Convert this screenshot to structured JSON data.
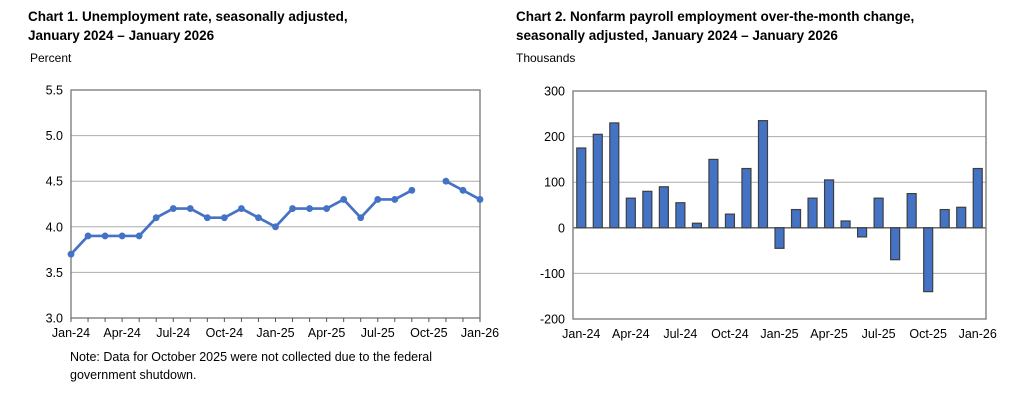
{
  "page": {
    "background": "#ffffff"
  },
  "charts": [
    {
      "title_line1": "Chart 1. Unemployment rate, seasonally adjusted,",
      "title_line2": "January 2024 – January 2026",
      "unit_label": "Percent",
      "note_line1": "Note: Data for October 2025 were not collected due to the federal",
      "note_line2": "government shutdown."
    },
    {
      "title_line1": "Chart 2. Nonfarm payroll employment over-the-month change,",
      "title_line2": "seasonally adjusted, January 2024 – January 2026",
      "unit_label": "Thousands"
    }
  ],
  "chart_data": [
    {
      "type": "line",
      "title": "Chart 1. Unemployment rate, seasonally adjusted, January 2024 – January 2026",
      "ylabel": "Percent",
      "x": [
        "Jan-24",
        "Feb-24",
        "Mar-24",
        "Apr-24",
        "May-24",
        "Jun-24",
        "Jul-24",
        "Aug-24",
        "Sep-24",
        "Oct-24",
        "Nov-24",
        "Dec-24",
        "Jan-25",
        "Feb-25",
        "Mar-25",
        "Apr-25",
        "May-25",
        "Jun-25",
        "Jul-25",
        "Aug-25",
        "Sep-25",
        "Oct-25",
        "Nov-25",
        "Dec-25",
        "Jan-26"
      ],
      "values": [
        3.7,
        3.9,
        3.9,
        3.9,
        3.9,
        4.1,
        4.2,
        4.2,
        4.1,
        4.1,
        4.2,
        4.1,
        4.0,
        4.2,
        4.2,
        4.2,
        4.3,
        4.1,
        4.3,
        4.3,
        4.4,
        null,
        4.5,
        4.4,
        4.3
      ],
      "missing_x": [
        "Oct-25"
      ],
      "ylim": [
        3.0,
        5.5
      ],
      "ytick_values": [
        5.5,
        5.0,
        4.5,
        4.0,
        3.5,
        3.0
      ],
      "ytick_labels": [
        "5.5",
        "5.0",
        "4.5",
        "4.0",
        "3.5",
        "3.0"
      ],
      "xtick_labels": [
        "Jan-24",
        "Apr-24",
        "Jul-24",
        "Oct-24",
        "Jan-25",
        "Apr-25",
        "Jul-25",
        "Oct-25",
        "Jan-26"
      ],
      "grid": true,
      "legend": "none",
      "line_color": "#4472C4",
      "note": "Note: Data for October 2025 were not collected due to the federal government shutdown."
    },
    {
      "type": "bar",
      "title": "Chart 2. Nonfarm payroll employment over-the-month change, seasonally adjusted, January 2024 – January 2026",
      "ylabel": "Thousands",
      "x": [
        "Jan-24",
        "Feb-24",
        "Mar-24",
        "Apr-24",
        "May-24",
        "Jun-24",
        "Jul-24",
        "Aug-24",
        "Sep-24",
        "Oct-24",
        "Nov-24",
        "Dec-24",
        "Jan-25",
        "Feb-25",
        "Mar-25",
        "Apr-25",
        "May-25",
        "Jun-25",
        "Jul-25",
        "Aug-25",
        "Sep-25",
        "Oct-25",
        "Nov-25",
        "Dec-25",
        "Jan-26"
      ],
      "values": [
        175,
        205,
        230,
        65,
        80,
        90,
        55,
        10,
        150,
        30,
        130,
        235,
        -45,
        40,
        65,
        105,
        15,
        -20,
        65,
        -70,
        75,
        -140,
        40,
        45,
        130
      ],
      "ylim": [
        -200,
        300
      ],
      "ytick_values": [
        300,
        200,
        100,
        0,
        -100,
        -200
      ],
      "ytick_labels": [
        "300",
        "200",
        "100",
        "0",
        "-100",
        "-200"
      ],
      "xtick_labels": [
        "Jan-24",
        "Apr-24",
        "Jul-24",
        "Oct-24",
        "Jan-25",
        "Apr-25",
        "Jul-25",
        "Oct-25",
        "Jan-26"
      ],
      "grid": true,
      "legend": "none",
      "bar_color": "#4472C4",
      "bar_border_color": "#3F3F3F"
    }
  ]
}
